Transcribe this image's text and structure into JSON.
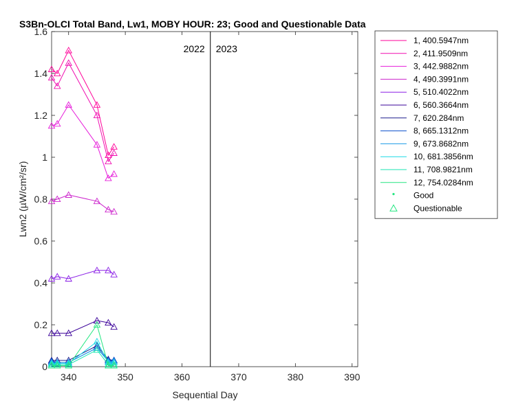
{
  "chart_data": {
    "type": "line",
    "title": "S3Bn-OLCI Total Band, Lw1, MOBY HOUR: 23;  Good and Questionable Data",
    "xlabel": "Sequential Day",
    "ylabel": "Lwn2 (µW/cm²/sr)",
    "xlim": [
      337,
      391
    ],
    "ylim": [
      0,
      1.6
    ],
    "xticks": [
      340,
      350,
      360,
      370,
      380,
      390
    ],
    "yticks": [
      0,
      0.2,
      0.4,
      0.6,
      0.8,
      1,
      1.2,
      1.4,
      1.6
    ],
    "grid": false,
    "legend_position": "outside-right",
    "marker": "triangle",
    "divider": {
      "x": 365,
      "left_label": "2022",
      "right_label": "2023"
    },
    "x": [
      337,
      338,
      340,
      345,
      347,
      348
    ],
    "series": [
      {
        "name": "1, 400.5947nm",
        "color": "#ff0099",
        "values": [
          1.42,
          1.4,
          1.51,
          1.25,
          1.01,
          1.05
        ]
      },
      {
        "name": "2, 411.9509nm",
        "color": "#f00cb0",
        "values": [
          1.38,
          1.34,
          1.45,
          1.2,
          0.98,
          1.02
        ]
      },
      {
        "name": "3, 442.9882nm",
        "color": "#e619d9",
        "values": [
          1.15,
          1.16,
          1.25,
          1.06,
          0.9,
          0.92
        ]
      },
      {
        "name": "4, 490.3991nm",
        "color": "#cc22cc",
        "values": [
          0.79,
          0.8,
          0.82,
          0.79,
          0.75,
          0.74
        ]
      },
      {
        "name": "5, 510.4022nm",
        "color": "#8a1ee6",
        "values": [
          0.42,
          0.43,
          0.42,
          0.46,
          0.46,
          0.44
        ]
      },
      {
        "name": "6, 560.3664nm",
        "color": "#3a0099",
        "values": [
          0.16,
          0.16,
          0.16,
          0.22,
          0.21,
          0.19
        ]
      },
      {
        "name": "7,  620.284nm",
        "color": "#1a1a8c",
        "values": [
          0.03,
          0.03,
          0.03,
          0.1,
          0.035,
          0.03
        ]
      },
      {
        "name": "8, 665.1312nm",
        "color": "#0a4fcc",
        "values": [
          0.025,
          0.02,
          0.02,
          0.09,
          0.03,
          0.03
        ]
      },
      {
        "name": "9, 673.8682nm",
        "color": "#1a99e6",
        "values": [
          0.02,
          0.02,
          0.02,
          0.09,
          0.025,
          0.025
        ]
      },
      {
        "name": "10, 681.3856nm",
        "color": "#19d9e6",
        "values": [
          0.015,
          0.015,
          0.015,
          0.12,
          0.02,
          0.02
        ]
      },
      {
        "name": "11, 708.9821nm",
        "color": "#19e6b3",
        "values": [
          0.01,
          0.01,
          0.01,
          0.08,
          0.01,
          0.01
        ]
      },
      {
        "name": "12, 754.0284nm",
        "color": "#22e680",
        "values": [
          0.005,
          0.005,
          0.005,
          0.2,
          0.005,
          0.005
        ]
      }
    ],
    "marker_legend": [
      {
        "name": "Good",
        "symbol": "dot",
        "color": "#22e680"
      },
      {
        "name": "Questionable",
        "symbol": "triangle",
        "color": "#22e680"
      }
    ]
  }
}
